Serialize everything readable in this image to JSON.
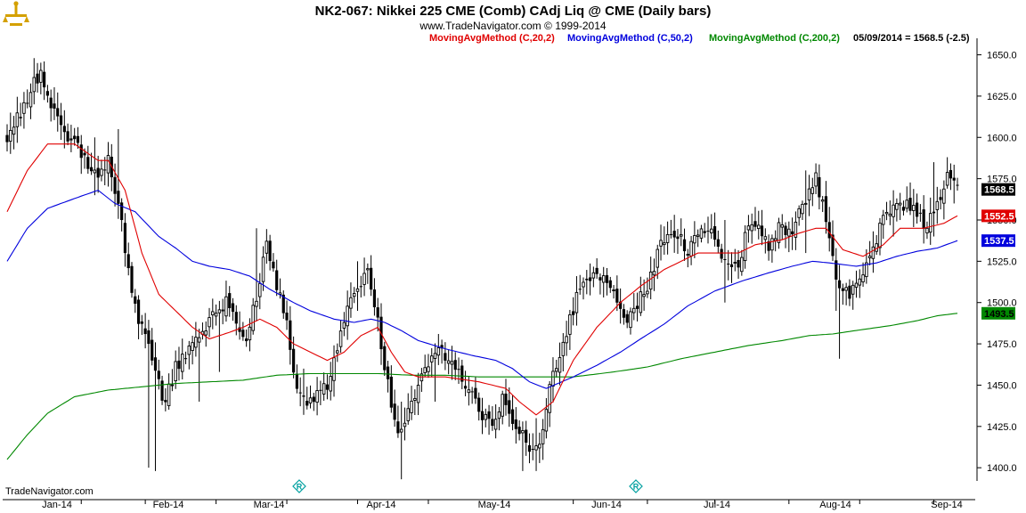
{
  "header": {
    "title": "NK2-067:  Nikkei 225 CME (Comb) CAdj Liq @ CME  (Daily bars)",
    "subtitle": "www.TradeNavigator.com © 1999-2014"
  },
  "legend": [
    {
      "label": "MovingAvgMethod (C,20,2)",
      "color": "#e00000"
    },
    {
      "label": "MovingAvgMethod (C,50,2)",
      "color": "#0000dd"
    },
    {
      "label": "MovingAvgMethod (C,200,2)",
      "color": "#008800"
    },
    {
      "label": "05/09/2014 = 1568.5 (-2.5)",
      "color": "#000000"
    }
  ],
  "footer": {
    "brand": "TradeNavigator.com"
  },
  "icons": [
    "logo-icon",
    "r-marker-icon",
    "r-marker-icon"
  ],
  "chart_data": {
    "type": "ohlc",
    "x_tick_labels": [
      "Jan-14",
      "Feb-14",
      "Mar-14",
      "Apr-14",
      "May-14",
      "Jun-14",
      "Jul-14",
      "Aug-14",
      "Sep-14"
    ],
    "y_ticks": [
      1400.0,
      1425.0,
      1450.0,
      1475.0,
      1500.0,
      1525.0,
      1550.0,
      1575.0,
      1600.0,
      1625.0,
      1650.0
    ],
    "y_tick_labels": [
      "1400.0",
      "1425.0",
      "1450.0",
      "1475.0",
      "1500.0",
      "1525.0",
      "1550.0",
      "1575.0",
      "1600.0",
      "1625.0",
      "1650.0"
    ],
    "ylim": [
      1392,
      1660
    ],
    "grid": false,
    "price_tags": [
      {
        "label": "1568.5",
        "value": 1568.5,
        "bg": "#000000",
        "fg": "#ffffff"
      },
      {
        "label": "1552.5",
        "value": 1552.5,
        "bg": "#e00000",
        "fg": "#ffffff"
      },
      {
        "label": "1537.5",
        "value": 1537.5,
        "bg": "#0000dd",
        "fg": "#ffffff"
      },
      {
        "label": "1493.5",
        "value": 1493.5,
        "bg": "#008800",
        "fg": "#000000"
      }
    ],
    "close_anchors": [
      [
        0,
        1600
      ],
      [
        4,
        1615
      ],
      [
        7,
        1630
      ],
      [
        10,
        1640
      ],
      [
        13,
        1618
      ],
      [
        16,
        1605
      ],
      [
        20,
        1595
      ],
      [
        24,
        1585
      ],
      [
        27,
        1575
      ],
      [
        30,
        1588
      ],
      [
        33,
        1560
      ],
      [
        36,
        1520
      ],
      [
        39,
        1490
      ],
      [
        42,
        1475
      ],
      [
        45,
        1450
      ],
      [
        47,
        1440
      ],
      [
        50,
        1460
      ],
      [
        53,
        1470
      ],
      [
        56,
        1475
      ],
      [
        59,
        1485
      ],
      [
        62,
        1495
      ],
      [
        65,
        1500
      ],
      [
        68,
        1490
      ],
      [
        71,
        1475
      ],
      [
        74,
        1505
      ],
      [
        77,
        1535
      ],
      [
        80,
        1510
      ],
      [
        83,
        1485
      ],
      [
        86,
        1450
      ],
      [
        89,
        1440
      ],
      [
        92,
        1445
      ],
      [
        95,
        1450
      ],
      [
        98,
        1470
      ],
      [
        101,
        1495
      ],
      [
        104,
        1510
      ],
      [
        107,
        1518
      ],
      [
        110,
        1488
      ],
      [
        113,
        1450
      ],
      [
        115,
        1425
      ],
      [
        117,
        1420
      ],
      [
        120,
        1440
      ],
      [
        123,
        1455
      ],
      [
        126,
        1465
      ],
      [
        129,
        1470
      ],
      [
        132,
        1460
      ],
      [
        135,
        1455
      ],
      [
        138,
        1445
      ],
      [
        141,
        1430
      ],
      [
        144,
        1425
      ],
      [
        147,
        1440
      ],
      [
        150,
        1430
      ],
      [
        153,
        1420
      ],
      [
        156,
        1410
      ],
      [
        158,
        1415
      ],
      [
        161,
        1450
      ],
      [
        164,
        1470
      ],
      [
        166,
        1480
      ],
      [
        169,
        1505
      ],
      [
        172,
        1515
      ],
      [
        175,
        1518
      ],
      [
        178,
        1510
      ],
      [
        181,
        1500
      ],
      [
        184,
        1490
      ],
      [
        187,
        1500
      ],
      [
        190,
        1510
      ],
      [
        193,
        1530
      ],
      [
        196,
        1545
      ],
      [
        199,
        1540
      ],
      [
        202,
        1530
      ],
      [
        205,
        1540
      ],
      [
        208,
        1545
      ],
      [
        211,
        1535
      ],
      [
        214,
        1520
      ],
      [
        217,
        1525
      ],
      [
        220,
        1545
      ],
      [
        223,
        1545
      ],
      [
        226,
        1535
      ],
      [
        229,
        1545
      ],
      [
        232,
        1540
      ],
      [
        235,
        1555
      ],
      [
        238,
        1565
      ],
      [
        240,
        1575
      ],
      [
        243,
        1550
      ],
      [
        246,
        1515
      ],
      [
        249,
        1505
      ],
      [
        252,
        1510
      ],
      [
        255,
        1525
      ],
      [
        258,
        1540
      ],
      [
        261,
        1555
      ],
      [
        264,
        1560
      ],
      [
        267,
        1560
      ],
      [
        270,
        1555
      ],
      [
        273,
        1545
      ],
      [
        276,
        1560
      ],
      [
        279,
        1575
      ],
      [
        282,
        1572
      ]
    ],
    "ma20_anchors": [
      [
        0,
        1555
      ],
      [
        6,
        1580
      ],
      [
        12,
        1596
      ],
      [
        20,
        1596
      ],
      [
        27,
        1586
      ],
      [
        30,
        1586
      ],
      [
        35,
        1568
      ],
      [
        40,
        1530
      ],
      [
        45,
        1505
      ],
      [
        50,
        1495
      ],
      [
        55,
        1485
      ],
      [
        60,
        1478
      ],
      [
        66,
        1482
      ],
      [
        70,
        1485
      ],
      [
        75,
        1490
      ],
      [
        80,
        1485
      ],
      [
        85,
        1475
      ],
      [
        90,
        1470
      ],
      [
        95,
        1465
      ],
      [
        100,
        1470
      ],
      [
        105,
        1480
      ],
      [
        110,
        1485
      ],
      [
        114,
        1470
      ],
      [
        118,
        1458
      ],
      [
        122,
        1455
      ],
      [
        130,
        1455
      ],
      [
        140,
        1452
      ],
      [
        148,
        1448
      ],
      [
        152,
        1440
      ],
      [
        157,
        1432
      ],
      [
        162,
        1440
      ],
      [
        168,
        1465
      ],
      [
        175,
        1485
      ],
      [
        182,
        1500
      ],
      [
        188,
        1510
      ],
      [
        195,
        1520
      ],
      [
        200,
        1525
      ],
      [
        205,
        1530
      ],
      [
        210,
        1530
      ],
      [
        217,
        1530
      ],
      [
        222,
        1535
      ],
      [
        230,
        1538
      ],
      [
        235,
        1542
      ],
      [
        240,
        1545
      ],
      [
        243,
        1545
      ],
      [
        248,
        1532
      ],
      [
        254,
        1528
      ],
      [
        260,
        1535
      ],
      [
        265,
        1545
      ],
      [
        272,
        1545
      ],
      [
        278,
        1548
      ],
      [
        282,
        1552.5
      ]
    ],
    "ma50_anchors": [
      [
        0,
        1525
      ],
      [
        6,
        1545
      ],
      [
        12,
        1557
      ],
      [
        20,
        1563
      ],
      [
        27,
        1568
      ],
      [
        32,
        1560
      ],
      [
        38,
        1555
      ],
      [
        45,
        1540
      ],
      [
        50,
        1533
      ],
      [
        55,
        1525
      ],
      [
        60,
        1522
      ],
      [
        66,
        1520
      ],
      [
        72,
        1516
      ],
      [
        78,
        1508
      ],
      [
        85,
        1500
      ],
      [
        90,
        1495
      ],
      [
        97,
        1490
      ],
      [
        103,
        1488
      ],
      [
        108,
        1490
      ],
      [
        112,
        1488
      ],
      [
        117,
        1483
      ],
      [
        122,
        1477
      ],
      [
        130,
        1472
      ],
      [
        138,
        1468
      ],
      [
        145,
        1465
      ],
      [
        150,
        1460
      ],
      [
        155,
        1452
      ],
      [
        160,
        1448
      ],
      [
        168,
        1455
      ],
      [
        175,
        1462
      ],
      [
        182,
        1470
      ],
      [
        188,
        1478
      ],
      [
        195,
        1487
      ],
      [
        202,
        1498
      ],
      [
        210,
        1507
      ],
      [
        218,
        1513
      ],
      [
        226,
        1518
      ],
      [
        233,
        1522
      ],
      [
        239,
        1525
      ],
      [
        244,
        1524
      ],
      [
        248,
        1523
      ],
      [
        252,
        1522
      ],
      [
        258,
        1524
      ],
      [
        264,
        1528
      ],
      [
        270,
        1531
      ],
      [
        276,
        1533
      ],
      [
        282,
        1537.5
      ]
    ],
    "ma200_anchors": [
      [
        0,
        1405
      ],
      [
        6,
        1420
      ],
      [
        12,
        1433
      ],
      [
        20,
        1443
      ],
      [
        30,
        1447
      ],
      [
        40,
        1449
      ],
      [
        50,
        1451
      ],
      [
        60,
        1452
      ],
      [
        70,
        1453
      ],
      [
        80,
        1456
      ],
      [
        90,
        1457
      ],
      [
        100,
        1457
      ],
      [
        110,
        1457
      ],
      [
        120,
        1456
      ],
      [
        130,
        1456
      ],
      [
        140,
        1455
      ],
      [
        150,
        1455
      ],
      [
        160,
        1455
      ],
      [
        168,
        1455
      ],
      [
        180,
        1458
      ],
      [
        190,
        1461
      ],
      [
        200,
        1466
      ],
      [
        210,
        1470
      ],
      [
        220,
        1474
      ],
      [
        230,
        1477
      ],
      [
        238,
        1480
      ],
      [
        245,
        1481
      ],
      [
        255,
        1484
      ],
      [
        262,
        1486
      ],
      [
        270,
        1489
      ],
      [
        276,
        1492
      ],
      [
        282,
        1493.5
      ]
    ],
    "spikes": [
      [
        1,
        1615,
        1590
      ],
      [
        8,
        1648,
        1620
      ],
      [
        26,
        1600,
        1565
      ],
      [
        33,
        1605,
        1570
      ],
      [
        42,
        1450,
        1400
      ],
      [
        44,
        1460,
        1398
      ],
      [
        57,
        1480,
        1440
      ],
      [
        63,
        1500,
        1458
      ],
      [
        74,
        1545,
        1510
      ],
      [
        88,
        1460,
        1432
      ],
      [
        104,
        1525,
        1495
      ],
      [
        117,
        1440,
        1393
      ],
      [
        127,
        1475,
        1440
      ],
      [
        153,
        1428,
        1398
      ],
      [
        157,
        1430,
        1398
      ],
      [
        213,
        1550,
        1500
      ],
      [
        237,
        1580,
        1530
      ],
      [
        246,
        1515,
        1495
      ],
      [
        247,
        1510,
        1466
      ],
      [
        263,
        1568,
        1540
      ],
      [
        275,
        1585,
        1540
      ],
      [
        281,
        1583,
        1560
      ]
    ]
  }
}
